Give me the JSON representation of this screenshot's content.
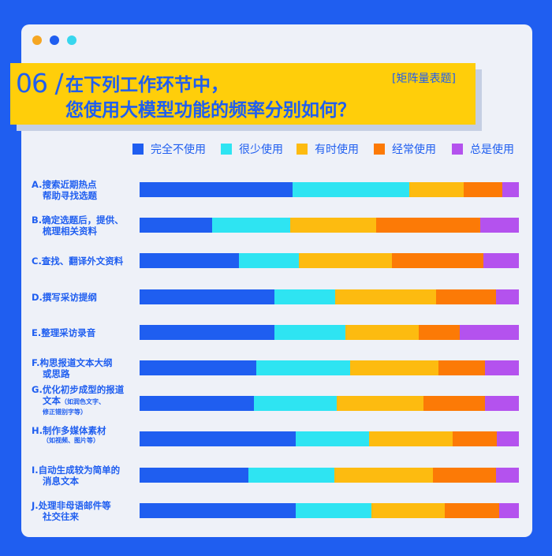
{
  "header": {
    "number": "06 /",
    "line1": "在下列工作环节中，",
    "line2": "您使用大模型功能的频率分别如何？",
    "tag": "[矩阵量表题]"
  },
  "colors": {
    "background": "#1f5ef0",
    "card": "#eef1f8",
    "banner": "#ffce0a",
    "dots": [
      "#f5a623",
      "#1f5ef0",
      "#37d6ee"
    ]
  },
  "chart_data": {
    "type": "bar",
    "orientation": "horizontal",
    "stacked": true,
    "percent": true,
    "xlim": [
      0,
      100
    ],
    "categories": [
      [
        "A.搜索近期热点",
        "帮助寻找选题"
      ],
      [
        "B.确定选题后，提供、",
        "梳理相关资料"
      ],
      [
        "C.查找、翻译外文资料"
      ],
      [
        "D.撰写采访提纲"
      ],
      [
        "E.整理采访录音"
      ],
      [
        "F.构思报道文本大纲",
        "或思路"
      ],
      [
        "G.优化初步成型的报道",
        "文本"
      ],
      [
        "H.制作多媒体素材"
      ],
      [
        "I.自动生成较为简单的",
        "消息文本"
      ],
      [
        "J.处理非母语邮件等",
        "社交往来"
      ]
    ],
    "sublabels": [
      "",
      "",
      "",
      "",
      "",
      "",
      "（如润色文字、修正错别字等）",
      "（如视频、图片等）",
      "",
      ""
    ],
    "legend_position": "top",
    "series": [
      {
        "name": "完全不使用",
        "color": "#1f5ef0",
        "values": [
          40.4,
          19.1,
          26.2,
          35.6,
          35.6,
          30.8,
          30.2,
          41.2,
          28.7,
          41.2
        ]
      },
      {
        "name": "很少使用",
        "color": "#2ee4f2",
        "values": [
          30.8,
          20.6,
          15.8,
          16.0,
          18.7,
          24.7,
          21.8,
          19.3,
          22.7,
          19.9
        ]
      },
      {
        "name": "有时使用",
        "color": "#fdbb10",
        "values": [
          14.3,
          22.7,
          24.6,
          26.6,
          19.3,
          23.3,
          22.9,
          22.0,
          26.0,
          19.3
        ]
      },
      {
        "name": "经常使用",
        "color": "#fc7a06",
        "values": [
          10.2,
          27.4,
          24.0,
          15.8,
          10.8,
          12.3,
          16.2,
          11.6,
          16.6,
          14.3
        ]
      },
      {
        "name": "总是使用",
        "color": "#b452ee",
        "values": [
          4.3,
          10.2,
          9.4,
          6.0,
          15.6,
          8.9,
          8.9,
          5.9,
          6.0,
          5.3
        ]
      }
    ]
  }
}
